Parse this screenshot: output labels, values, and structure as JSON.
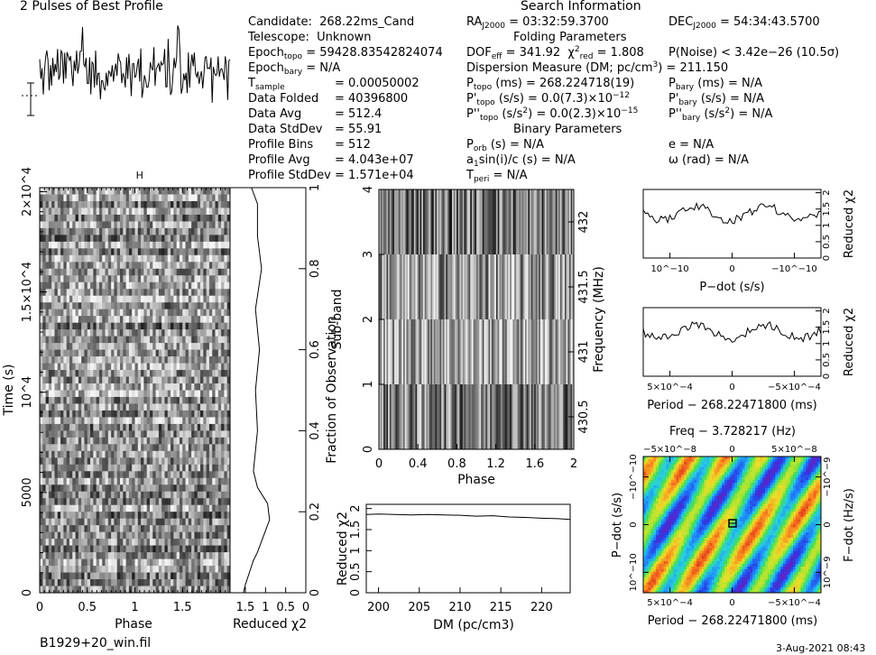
{
  "title_left": "2 Pulses of Best Profile",
  "title_right": "Search Information",
  "info": {
    "candidate_label": "Candidate:",
    "candidate": "268.22ms_Cand",
    "telescope_label": "Telescope:",
    "telescope": "Unknown",
    "epoch_topo_label": "Epoch",
    "epoch_topo_sub": "topo",
    "epoch_topo": "= 59428.83542824074",
    "epoch_bary_label": "Epoch",
    "epoch_bary_sub": "bary",
    "epoch_bary": "= N/A",
    "tsample_label": "T",
    "tsample_sub": "sample",
    "tsample": "=   0.00050002",
    "data_folded_label": "Data Folded",
    "data_folded": "=   40396800",
    "data_avg_label": "Data Avg",
    "data_avg": "=   512.4",
    "data_stddev_label": "Data StdDev",
    "data_stddev": "=   55.91",
    "profile_bins_label": "Profile Bins",
    "profile_bins": "=   512",
    "profile_avg_label": "Profile Avg",
    "profile_avg": "=   4.043e+07",
    "profile_stddev_label": "Profile StdDev",
    "profile_stddev": "=   1.571e+04"
  },
  "search": {
    "ra_label": "RA",
    "ra_sub": "J2000",
    "ra": "= 03:32:59.3700",
    "dec_label": "DEC",
    "dec_sub": "J2000",
    "dec": "= 54:34:43.5700",
    "folding_header": "Folding Parameters",
    "dof_label": "DOF",
    "dof_sub": "eff",
    "dof": "= 341.92",
    "chi_label": "χ",
    "chi_sup": "2",
    "chi_sub": "red",
    "chi": "= 1.808",
    "pnoise": "P(Noise) < 3.42e−26   (10.5σ)",
    "dm_line": "Dispersion Measure (DM; pc/cm",
    "dm_sup": "3",
    "dm_value": ") = 211.150",
    "ptopo_label": "P",
    "ptopo_sub": "topo",
    "ptopo": "(ms)  =  268.224718(19)",
    "pbary_label": "P",
    "pbary_sub": "bary",
    "pbary": "(ms) = N/A",
    "pdtopo_label": "P'",
    "pdtopo_sub": "topo",
    "pdtopo": "(s/s)  = 0.0(7.3)×10",
    "pdtopo_exp": "−12",
    "pdbary_label": "P'",
    "pdbary_sub": "bary",
    "pdbary": "(s/s) = N/A",
    "pddtopo_label": "P''",
    "pddtopo_sub": "topo",
    "pddtopo": "(s/s",
    "pddtopo_sup": "2",
    "pddtopo_val": ") = 0.0(2.3)×10",
    "pddtopo_exp": "−15",
    "pddbary_label": "P''",
    "pddbary_sub": "bary",
    "pddbary": "(s/s",
    "pddbary_sup": "2",
    "pddbary_val": ") = N/A",
    "binary_header": "Binary Parameters",
    "porb_label": "P",
    "porb_sub": "orb",
    "porb": "(s) = N/A",
    "e": "e = N/A",
    "asini_label": "a",
    "asini_sub": "1",
    "asini": "sin(i)/c (s) = N/A",
    "omega": "ω (rad) = N/A",
    "tperi_label": "T",
    "tperi_sub": "peri",
    "tperi": "= N/A"
  },
  "footer": {
    "filename": "B1929+20_win.fil",
    "date": "3-Aug-2021 08:43"
  },
  "colors": {
    "ink": "#000000"
  },
  "chart_data": [
    {
      "type": "line",
      "name": "pulse-profile",
      "title": "2 Pulses of Best Profile",
      "xlim": [
        0,
        2
      ],
      "peaks_at_phase": [
        0.45,
        1.45
      ]
    },
    {
      "type": "heatmap",
      "name": "time-vs-phase",
      "xlabel": "Phase",
      "ylabel": "Time (s)",
      "xticks": [
        0,
        0.5,
        1,
        1.5
      ],
      "yticks": [
        "0",
        "5000",
        "10^4",
        "1.5×10^4",
        "2×10^4"
      ],
      "ylim": [
        0,
        20200
      ],
      "marker": "H"
    },
    {
      "type": "line",
      "name": "fraction-reduced-chi2",
      "xlabel": "Reduced χ2",
      "ylabel": "Fraction of Observation",
      "xticks": [
        "1.5",
        "1",
        "0.5",
        "0"
      ],
      "yticks": [
        0,
        0.2,
        0.4,
        0.6,
        0.8,
        1
      ],
      "y": [
        0.0,
        0.02,
        0.05,
        0.08,
        0.1,
        0.14,
        0.18,
        0.22,
        0.26,
        0.3,
        0.4,
        0.5,
        0.6,
        0.7,
        0.8,
        0.88,
        0.96,
        1.0
      ],
      "x": [
        1.55,
        1.5,
        1.4,
        1.3,
        1.2,
        1.05,
        0.9,
        0.95,
        1.2,
        1.3,
        1.2,
        1.25,
        1.15,
        1.25,
        1.1,
        1.2,
        1.2,
        1.35
      ]
    },
    {
      "type": "heatmap",
      "name": "subband-vs-phase",
      "xlabel": "Phase",
      "ylabel": "Sub-band",
      "y2label": "Frequency (MHz)",
      "xticks": [
        0,
        0.4,
        0.8,
        1.2,
        1.6,
        2
      ],
      "yticks": [
        0,
        1,
        2,
        3,
        4
      ],
      "y2ticks": [
        "430.5",
        "431",
        "431.5",
        "432"
      ]
    },
    {
      "type": "line",
      "name": "dm-chi2",
      "xlabel": "DM (pc/cm3)",
      "ylabel": "Reduced χ2",
      "xticks": [
        200,
        205,
        210,
        215,
        220
      ],
      "xlim": [
        198.5,
        223.5
      ],
      "yticks": [
        0,
        0.5,
        1,
        1.5,
        2
      ],
      "ylim": [
        0,
        2.1
      ],
      "x": [
        198.5,
        200,
        202,
        204,
        206,
        208,
        210,
        212,
        214,
        216,
        218,
        220,
        222,
        223.5
      ],
      "y": [
        1.86,
        1.87,
        1.86,
        1.85,
        1.86,
        1.85,
        1.84,
        1.82,
        1.83,
        1.8,
        1.79,
        1.77,
        1.76,
        1.74
      ]
    },
    {
      "type": "line",
      "name": "pdot-chi2",
      "xlabel": "P−dot (s/s)",
      "ylabel": "Reduced χ2",
      "xticks": [
        "10^−10",
        "0",
        "−10^−10"
      ],
      "yticks": [
        0,
        0.5,
        1,
        1.5,
        2
      ]
    },
    {
      "type": "line",
      "name": "period-chi2",
      "xlabel": "Period − 268.22471800 (ms)",
      "ylabel": "Reduced χ2",
      "xticks": [
        "5×10^−4",
        "0",
        "−5×10^−4"
      ],
      "yticks": [
        0,
        0.5,
        1,
        1.5,
        2
      ]
    },
    {
      "type": "heatmap",
      "name": "period-pdot-plane",
      "title": "Freq − 3.728217 (Hz)",
      "xlabel": "Period − 268.22471800 (ms)",
      "ylabel": "P−dot (s/s)",
      "y2label": "F−dot (Hz/s)",
      "xticks": [
        "5×10^−4",
        "0",
        "−5×10^−4"
      ],
      "x2ticks": [
        "−5×10^−8",
        "0",
        "5×10^−8"
      ],
      "yticks": [
        "10^−10",
        "0",
        "−10^−10"
      ],
      "y2ticks": [
        "−10^−9",
        "0",
        "10^−9"
      ]
    }
  ]
}
